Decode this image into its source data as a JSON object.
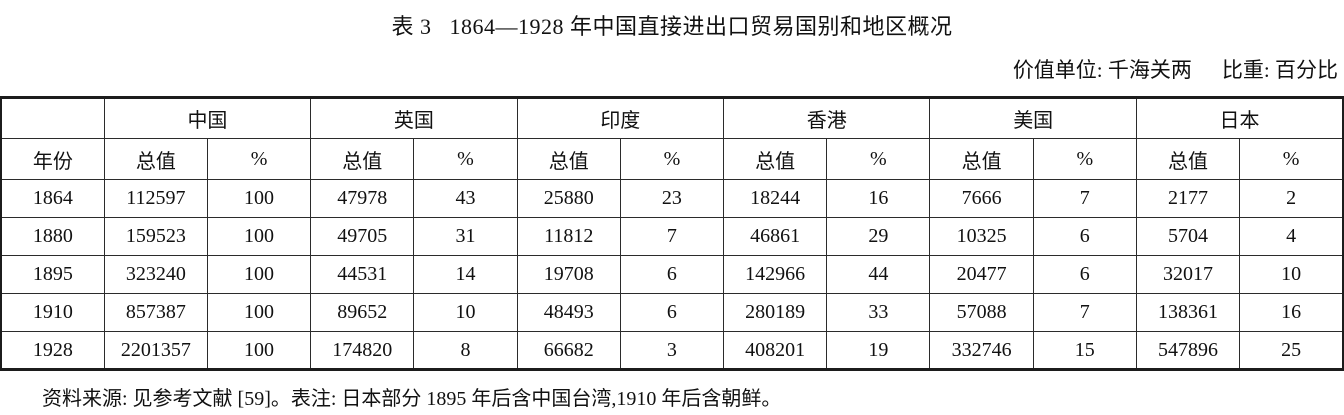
{
  "title": {
    "label": "表 3",
    "caption": "1864—1928 年中国直接进出口贸易国别和地区概况"
  },
  "units": {
    "value_unit": "价值单位: 千海关两",
    "percent_unit": "比重: 百分比"
  },
  "table": {
    "year_header": "年份",
    "value_header": "总值",
    "percent_header": "%",
    "groups": [
      "中国",
      "英国",
      "印度",
      "香港",
      "美国",
      "日本"
    ],
    "rows": [
      {
        "year": "1864",
        "cells": [
          "112597",
          "100",
          "47978",
          "43",
          "25880",
          "23",
          "18244",
          "16",
          "7666",
          "7",
          "2177",
          "2"
        ]
      },
      {
        "year": "1880",
        "cells": [
          "159523",
          "100",
          "49705",
          "31",
          "11812",
          "7",
          "46861",
          "29",
          "10325",
          "6",
          "5704",
          "4"
        ]
      },
      {
        "year": "1895",
        "cells": [
          "323240",
          "100",
          "44531",
          "14",
          "19708",
          "6",
          "142966",
          "44",
          "20477",
          "6",
          "32017",
          "10"
        ]
      },
      {
        "year": "1910",
        "cells": [
          "857387",
          "100",
          "89652",
          "10",
          "48493",
          "6",
          "280189",
          "33",
          "57088",
          "7",
          "138361",
          "16"
        ]
      },
      {
        "year": "1928",
        "cells": [
          "2201357",
          "100",
          "174820",
          "8",
          "66682",
          "3",
          "408201",
          "19",
          "332746",
          "15",
          "547896",
          "25"
        ]
      }
    ]
  },
  "footnote": "资料来源: 见参考文献 [59]。表注: 日本部分 1895 年后含中国台湾,1910 年后含朝鲜。"
}
